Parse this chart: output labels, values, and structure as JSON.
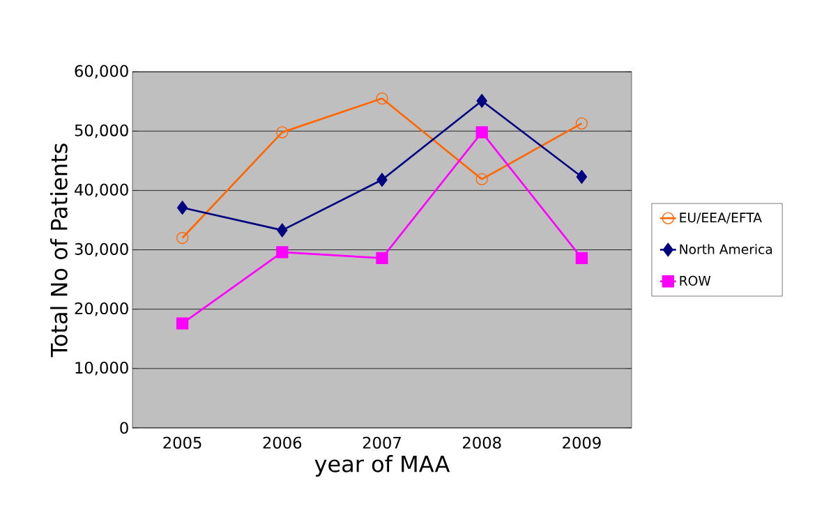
{
  "chart_data": {
    "type": "line",
    "xlabel": "year of MAA",
    "ylabel": "Total No of Patients",
    "categories": [
      "2005",
      "2006",
      "2007",
      "2008",
      "2009"
    ],
    "series": [
      {
        "name": "EU/EEA/EFTA",
        "color": "#ff6600",
        "marker": "circle",
        "values": [
          32000,
          49800,
          55500,
          41900,
          51300
        ]
      },
      {
        "name": "North America",
        "color": "#000080",
        "marker": "diamond",
        "values": [
          37100,
          33300,
          41800,
          55100,
          42300
        ]
      },
      {
        "name": "ROW",
        "color": "#ff00ff",
        "marker": "square",
        "values": [
          17600,
          29600,
          28600,
          49800,
          28600
        ]
      }
    ],
    "ylim": [
      0,
      60000
    ],
    "yticks": [
      {
        "value": 0,
        "label": "0"
      },
      {
        "value": 10000,
        "label": "10,000"
      },
      {
        "value": 20000,
        "label": "20,000"
      },
      {
        "value": 30000,
        "label": "30,000"
      },
      {
        "value": 40000,
        "label": "40,000"
      },
      {
        "value": 50000,
        "label": "50,000"
      },
      {
        "value": 60000,
        "label": "60,000"
      }
    ],
    "grid": "y",
    "legend": "right",
    "line_style": "solid"
  }
}
